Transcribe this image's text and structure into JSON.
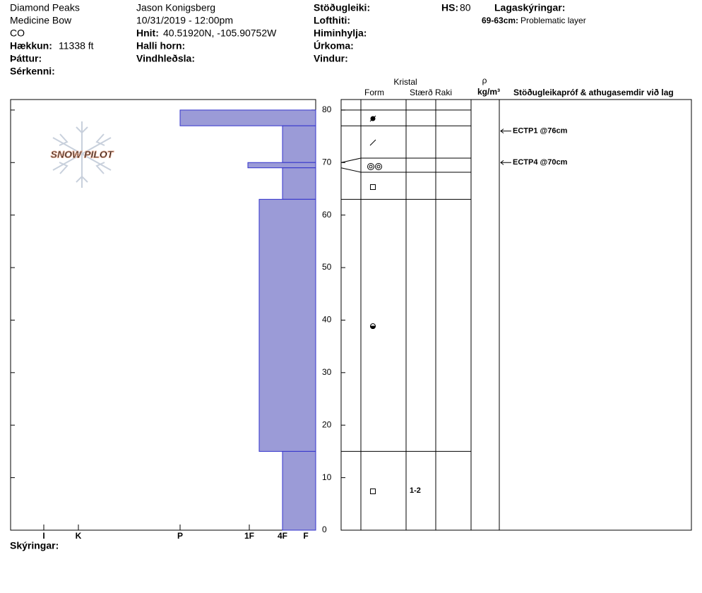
{
  "header": {
    "location": [
      "Diamond Peaks",
      "Medicine Bow",
      "CO"
    ],
    "elevation_label": "Hækkun:",
    "elevation": "11338 ft",
    "aspect_label": "Þáttur:",
    "features_label": "Sérkenni:",
    "observer": "Jason Konigsberg",
    "datetime": "10/31/2019 - 12:00pm",
    "coords_label": "Hnit:",
    "coords": "40.51920N, -105.90752W",
    "slope_label": "Halli horn:",
    "wind_loading_label": "Vindhleðsla:",
    "stability_label": "Stöðugleiki:",
    "air_temp_label": "Lofthiti:",
    "sky_label": "Himinhylja:",
    "precip_label": "Úrkoma:",
    "wind_label": "Vindur:",
    "hs_label": "HS:",
    "hs": 80,
    "layer_notes_label": "Lagaskýringar:",
    "layer_note_range": "69-63cm:",
    "layer_note": "Problematic layer"
  },
  "logo": "SNOW PILOT",
  "chart_data": {
    "type": "snowprofile",
    "ylim": [
      0,
      82
    ],
    "yticks": [
      0,
      10,
      20,
      30,
      40,
      50,
      60,
      70,
      80
    ],
    "xlim": [
      432,
      0
    ],
    "xticks": [
      {
        "value": 385,
        "label": "I"
      },
      {
        "value": 336,
        "label": "K"
      },
      {
        "value": 192,
        "label": "P"
      },
      {
        "value": 94,
        "label": "1F"
      },
      {
        "value": 47,
        "label": "4F"
      },
      {
        "value": 14,
        "label": "F"
      }
    ],
    "color": "#9b9bd7",
    "layers": {
      "top": [
        80,
        77,
        70,
        69,
        63,
        15
      ],
      "bottom": [
        77,
        70,
        69,
        63,
        15,
        0
      ],
      "values": [
        192,
        47,
        96,
        47,
        80,
        47
      ],
      "grain_size": [
        null,
        null,
        null,
        null,
        null,
        "1-2"
      ]
    },
    "columns": {
      "crystal": "Kristal",
      "form": "Form",
      "size": "Stærð",
      "moisture": "Raki",
      "rho": "ρ",
      "density_unit": "kg/m³",
      "tests": "Stöðugleikapróf & athugasemdir við lag"
    },
    "tests": [
      {
        "label": "ECTP1 @76cm",
        "depth": 76
      },
      {
        "label": "ECTP4 @70cm",
        "depth": 70
      }
    ],
    "notes_label": "Skýringar:"
  }
}
